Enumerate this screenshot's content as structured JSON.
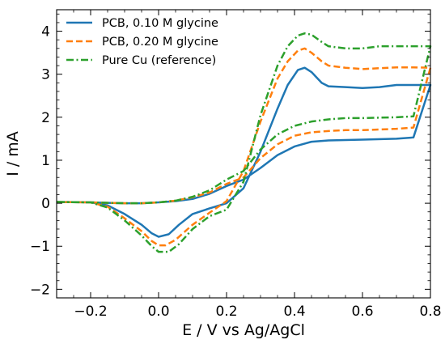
{
  "chart_data": {
    "type": "line",
    "xlabel": "E / V vs Ag/AgCl",
    "ylabel": "I / mA",
    "xlim": [
      -0.3,
      0.8
    ],
    "ylim": [
      -2.2,
      4.5
    ],
    "xticks": [
      -0.2,
      0.0,
      0.2,
      0.4,
      0.6,
      0.8
    ],
    "xtick_labels": [
      "−0.2",
      "0.0",
      "0.2",
      "0.4",
      "0.6",
      "0.8"
    ],
    "yticks": [
      -2,
      -1,
      0,
      1,
      2,
      3,
      4
    ],
    "ytick_labels": [
      "−2",
      "−1",
      "0",
      "1",
      "2",
      "3",
      "4"
    ],
    "grid": false,
    "legend_position": "top-left",
    "series": [
      {
        "name": "PCB, 0.10 M glycine",
        "color": "#1f77b4",
        "style": "solid",
        "x": [
          -0.3,
          -0.2,
          -0.15,
          -0.1,
          -0.05,
          -0.02,
          0.0,
          0.03,
          0.06,
          0.1,
          0.15,
          0.2,
          0.25,
          0.3,
          0.35,
          0.38,
          0.41,
          0.43,
          0.45,
          0.48,
          0.5,
          0.55,
          0.6,
          0.65,
          0.7,
          0.75,
          0.8,
          0.75,
          0.7,
          0.6,
          0.55,
          0.5,
          0.45,
          0.4,
          0.35,
          0.3,
          0.25,
          0.2,
          0.15,
          0.1,
          0.05,
          0.0,
          -0.05,
          -0.1,
          -0.15,
          -0.2,
          -0.3
        ],
        "y": [
          0.03,
          0.02,
          -0.05,
          -0.25,
          -0.5,
          -0.7,
          -0.78,
          -0.72,
          -0.5,
          -0.25,
          -0.12,
          0.0,
          0.35,
          1.2,
          2.2,
          2.75,
          3.1,
          3.15,
          3.05,
          2.8,
          2.72,
          2.7,
          2.68,
          2.7,
          2.75,
          2.75,
          2.75,
          1.53,
          1.5,
          1.48,
          1.47,
          1.46,
          1.43,
          1.32,
          1.12,
          0.82,
          0.55,
          0.4,
          0.22,
          0.1,
          0.05,
          0.02,
          0.0,
          0.0,
          0.01,
          0.02,
          0.03
        ]
      },
      {
        "name": "PCB, 0.20 M glycine",
        "color": "#ff7f0e",
        "style": "dashed",
        "x": [
          -0.3,
          -0.2,
          -0.15,
          -0.1,
          -0.05,
          -0.02,
          0.0,
          0.02,
          0.05,
          0.1,
          0.15,
          0.2,
          0.25,
          0.3,
          0.35,
          0.38,
          0.41,
          0.43,
          0.45,
          0.48,
          0.5,
          0.55,
          0.6,
          0.65,
          0.7,
          0.75,
          0.8,
          0.75,
          0.7,
          0.6,
          0.55,
          0.5,
          0.45,
          0.4,
          0.35,
          0.3,
          0.25,
          0.2,
          0.15,
          0.1,
          0.05,
          0.0,
          -0.05,
          -0.1,
          -0.15,
          -0.2,
          -0.3
        ],
        "y": [
          0.03,
          0.02,
          -0.08,
          -0.35,
          -0.65,
          -0.88,
          -0.98,
          -0.98,
          -0.85,
          -0.5,
          -0.22,
          0.05,
          0.75,
          1.9,
          2.9,
          3.3,
          3.55,
          3.6,
          3.5,
          3.3,
          3.2,
          3.15,
          3.12,
          3.14,
          3.16,
          3.16,
          3.15,
          1.76,
          1.73,
          1.7,
          1.7,
          1.68,
          1.65,
          1.57,
          1.37,
          1.05,
          0.6,
          0.45,
          0.25,
          0.14,
          0.06,
          0.02,
          0.0,
          0.0,
          0.01,
          0.02,
          0.03
        ]
      },
      {
        "name": "Pure Cu (reference)",
        "color": "#2ca02c",
        "style": "dashdot",
        "x": [
          -0.3,
          -0.2,
          -0.15,
          -0.1,
          -0.05,
          -0.02,
          0.0,
          0.03,
          0.06,
          0.1,
          0.15,
          0.2,
          0.25,
          0.3,
          0.35,
          0.38,
          0.41,
          0.43,
          0.45,
          0.48,
          0.5,
          0.55,
          0.6,
          0.65,
          0.7,
          0.75,
          0.8,
          0.75,
          0.7,
          0.6,
          0.55,
          0.5,
          0.45,
          0.4,
          0.35,
          0.3,
          0.25,
          0.2,
          0.15,
          0.1,
          0.05,
          0.0,
          -0.05,
          -0.1,
          -0.15,
          -0.2,
          -0.3
        ],
        "y": [
          0.03,
          0.02,
          -0.1,
          -0.4,
          -0.75,
          -1.0,
          -1.13,
          -1.13,
          -0.95,
          -0.6,
          -0.3,
          -0.15,
          0.5,
          2.05,
          3.2,
          3.65,
          3.9,
          3.95,
          3.92,
          3.75,
          3.65,
          3.6,
          3.6,
          3.65,
          3.65,
          3.65,
          3.65,
          2.02,
          2.0,
          1.98,
          1.98,
          1.95,
          1.9,
          1.8,
          1.6,
          1.25,
          0.75,
          0.55,
          0.3,
          0.15,
          0.06,
          0.02,
          0.0,
          0.0,
          0.01,
          0.02,
          0.03
        ]
      }
    ]
  }
}
